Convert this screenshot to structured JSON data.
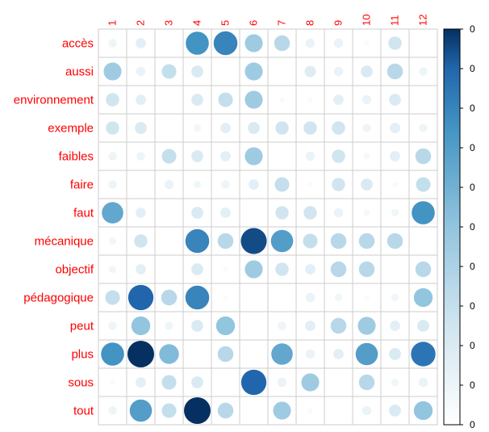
{
  "chart_data": {
    "type": "heatmap",
    "method": "circle",
    "columns": [
      "1",
      "2",
      "3",
      "4",
      "5",
      "6",
      "7",
      "8",
      "9",
      "10",
      "11",
      "12"
    ],
    "rows": [
      "accès",
      "aussi",
      "environnement",
      "exemple",
      "faibles",
      "faire",
      "faut",
      "mécanique",
      "objectif",
      "pédagogique",
      "peut",
      "plus",
      "sous",
      "tout"
    ],
    "values": [
      [
        0.1,
        0.15,
        0,
        0.75,
        0.8,
        0.45,
        0.35,
        0.12,
        0.12,
        0.04,
        0.25,
        0
      ],
      [
        0.45,
        0.12,
        0.3,
        0.2,
        0,
        0.45,
        0,
        0.18,
        0.12,
        0.2,
        0.35,
        0.1
      ],
      [
        0.25,
        0.15,
        0,
        0.2,
        0.3,
        0.45,
        0.04,
        0.04,
        0.15,
        0.12,
        0.2,
        0
      ],
      [
        0.25,
        0.2,
        0,
        0.08,
        0.15,
        0.2,
        0.25,
        0.25,
        0.25,
        0.1,
        0.15,
        0.1
      ],
      [
        0.1,
        0.1,
        0.3,
        0.2,
        0.15,
        0.45,
        0,
        0.12,
        0.25,
        0.06,
        0.15,
        0.35
      ],
      [
        0.1,
        0,
        0.12,
        0.08,
        0.1,
        0.15,
        0.3,
        0.04,
        0.25,
        0.2,
        0.04,
        0.3
      ],
      [
        0.65,
        0.15,
        0,
        0.2,
        0.15,
        0,
        0.25,
        0.25,
        0.12,
        0.06,
        0.08,
        0.75
      ],
      [
        0.08,
        0.25,
        0,
        0.8,
        0.35,
        0.95,
        0.7,
        0.3,
        0.35,
        0.35,
        0.35,
        0
      ],
      [
        0.08,
        0.15,
        0,
        0.2,
        0.04,
        0.45,
        0.25,
        0.15,
        0.35,
        0.35,
        0,
        0.35
      ],
      [
        0.3,
        0.9,
        0.35,
        0.8,
        0.04,
        0,
        0,
        0.12,
        0.08,
        0.04,
        0.08,
        0.5
      ],
      [
        0.1,
        0.5,
        0.1,
        0.2,
        0.5,
        0,
        0.1,
        0.15,
        0.35,
        0.45,
        0.15,
        0.2
      ],
      [
        0.75,
        1.0,
        0.55,
        0,
        0.35,
        0,
        0.65,
        0.12,
        0.15,
        0.7,
        0.2,
        0.85
      ],
      [
        0.04,
        0.15,
        0.3,
        0.2,
        0,
        0.9,
        0.12,
        0.45,
        0,
        0.35,
        0.08,
        0.12
      ],
      [
        0.1,
        0.7,
        0.3,
        1.0,
        0.35,
        0,
        0.45,
        0.04,
        0,
        0.12,
        0.2,
        0.5
      ]
    ],
    "colorbar": {
      "ticks": [
        "0",
        "0",
        "0",
        "0",
        "0",
        "0",
        "0",
        "0",
        "0",
        "0",
        "0"
      ],
      "low_color": "#ffffff",
      "high_color": "#053061"
    },
    "grid": true,
    "label_color": "#ff0000",
    "grid_color": "#cccccc"
  }
}
